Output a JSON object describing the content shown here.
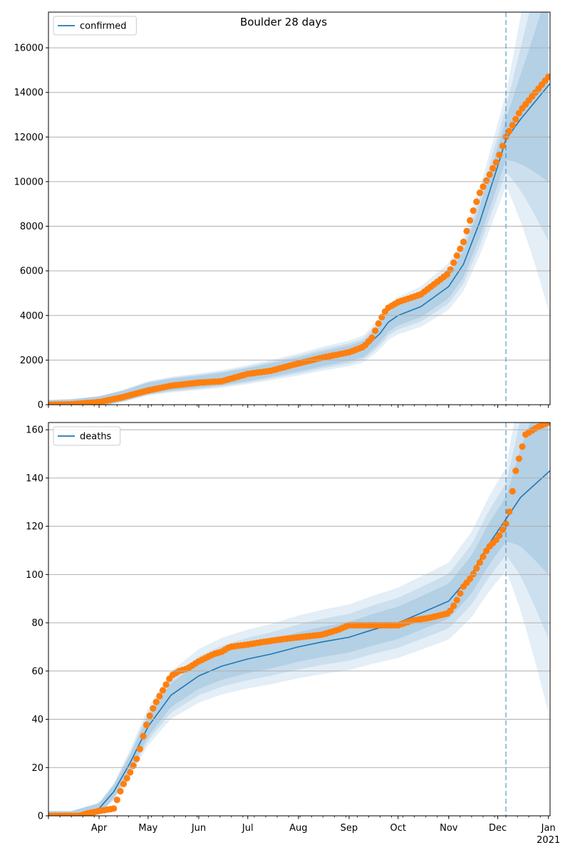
{
  "colors": {
    "model": "#1f77b4",
    "observed": "#ff7f0e",
    "band": "#1f77b4",
    "grid": "#b0b0b0",
    "vline": "#1f77b4"
  },
  "chart_data": [
    {
      "type": "line",
      "title": "Boulder 28 days",
      "xlabel": "",
      "ylabel": "",
      "legend": [
        "confirmed"
      ],
      "legend_position": "top-left",
      "grid": "horizontal",
      "xlim": [
        "2020-03-01",
        "2021-01-02"
      ],
      "ylim": [
        0,
        17600
      ],
      "yticks": [
        "0",
        "2000",
        "4000",
        "6000",
        "8000",
        "10000",
        "12000",
        "14000",
        "16000"
      ],
      "vline_date": "2020-12-06",
      "series": [
        {
          "name": "confirmed",
          "kind": "model",
          "x": [
            "2020-03-01",
            "2020-03-15",
            "2020-04-01",
            "2020-04-15",
            "2020-05-01",
            "2020-05-15",
            "2020-06-01",
            "2020-06-15",
            "2020-07-01",
            "2020-07-15",
            "2020-08-01",
            "2020-08-15",
            "2020-09-01",
            "2020-09-10",
            "2020-09-20",
            "2020-09-25",
            "2020-10-01",
            "2020-10-15",
            "2020-11-01",
            "2020-11-10",
            "2020-11-20",
            "2020-12-01",
            "2020-12-06",
            "2020-12-15",
            "2021-01-02"
          ],
          "values": [
            0,
            30,
            150,
            380,
            730,
            900,
            1030,
            1150,
            1350,
            1550,
            1800,
            2050,
            2300,
            2500,
            3200,
            3700,
            4000,
            4400,
            5300,
            6300,
            8200,
            10700,
            11900,
            12800,
            14400
          ]
        },
        {
          "name": "",
          "kind": "observed",
          "x": [
            "2020-03-01",
            "2020-03-15",
            "2020-04-01",
            "2020-04-15",
            "2020-05-01",
            "2020-05-15",
            "2020-06-01",
            "2020-06-15",
            "2020-07-01",
            "2020-07-15",
            "2020-08-01",
            "2020-08-15",
            "2020-09-01",
            "2020-09-10",
            "2020-09-15",
            "2020-09-20",
            "2020-09-24",
            "2020-10-01",
            "2020-10-15",
            "2020-11-01",
            "2020-11-10",
            "2020-11-15",
            "2020-11-20",
            "2020-12-01",
            "2020-12-06",
            "2020-12-15",
            "2021-01-01"
          ],
          "values": [
            0,
            20,
            120,
            330,
            640,
            850,
            990,
            1050,
            1380,
            1520,
            1850,
            2100,
            2350,
            2600,
            3000,
            3800,
            4300,
            4600,
            4950,
            5900,
            7300,
            8500,
            9500,
            11000,
            12000,
            13200,
            14700
          ]
        }
      ]
    },
    {
      "type": "line",
      "title": "",
      "xlabel": "",
      "ylabel": "",
      "legend": [
        "deaths"
      ],
      "legend_position": "top-left",
      "grid": "horizontal",
      "xlim": [
        "2020-03-01",
        "2021-01-02"
      ],
      "ylim": [
        0,
        163
      ],
      "yticks": [
        "0",
        "20",
        "40",
        "60",
        "80",
        "100",
        "120",
        "140",
        "160"
      ],
      "xticks": [
        "Apr",
        "May",
        "Jun",
        "Jul",
        "Aug",
        "Sep",
        "Oct",
        "Nov",
        "Dec",
        "Jan"
      ],
      "xtick_dates": [
        "2020-04-01",
        "2020-05-01",
        "2020-06-01",
        "2020-07-01",
        "2020-08-01",
        "2020-09-01",
        "2020-10-01",
        "2020-11-01",
        "2020-12-01",
        "2021-01-01"
      ],
      "year_label": "2021",
      "vline_date": "2020-12-06",
      "series": [
        {
          "name": "deaths",
          "kind": "model",
          "x": [
            "2020-03-01",
            "2020-03-15",
            "2020-04-01",
            "2020-04-10",
            "2020-04-20",
            "2020-05-01",
            "2020-05-15",
            "2020-06-01",
            "2020-06-15",
            "2020-07-01",
            "2020-07-15",
            "2020-08-01",
            "2020-08-15",
            "2020-09-01",
            "2020-09-15",
            "2020-10-01",
            "2020-10-15",
            "2020-11-01",
            "2020-11-15",
            "2020-11-25",
            "2020-12-06",
            "2020-12-15",
            "2021-01-02"
          ],
          "values": [
            0,
            0,
            3,
            10,
            22,
            37,
            50,
            58,
            62,
            65,
            67,
            70,
            72,
            74,
            77,
            80,
            84,
            89,
            100,
            112,
            123,
            132,
            143
          ]
        },
        {
          "name": "",
          "kind": "observed",
          "x": [
            "2020-03-01",
            "2020-03-20",
            "2020-03-25",
            "2020-04-01",
            "2020-04-10",
            "2020-04-15",
            "2020-04-20",
            "2020-04-25",
            "2020-04-28",
            "2020-05-01",
            "2020-05-05",
            "2020-05-10",
            "2020-05-15",
            "2020-05-20",
            "2020-05-25",
            "2020-06-01",
            "2020-06-10",
            "2020-06-15",
            "2020-06-20",
            "2020-07-01",
            "2020-07-10",
            "2020-07-20",
            "2020-08-01",
            "2020-08-15",
            "2020-08-25",
            "2020-09-01",
            "2020-09-20",
            "2020-10-01",
            "2020-10-10",
            "2020-10-20",
            "2020-11-01",
            "2020-11-05",
            "2020-11-10",
            "2020-11-15",
            "2020-11-20",
            "2020-11-25",
            "2020-12-01",
            "2020-12-06",
            "2020-12-08",
            "2020-12-12",
            "2020-12-14",
            "2020-12-18",
            "2020-12-25",
            "2021-01-01"
          ],
          "values": [
            0,
            0,
            1,
            2,
            3,
            12,
            18,
            25,
            33,
            40,
            46,
            52,
            58,
            60,
            61,
            64,
            67,
            68,
            70,
            71,
            72,
            73,
            74,
            75,
            77,
            79,
            79,
            79,
            81,
            82,
            84,
            88,
            95,
            99,
            105,
            111,
            115,
            121,
            126,
            143,
            148,
            158,
            161,
            163
          ]
        }
      ]
    }
  ]
}
